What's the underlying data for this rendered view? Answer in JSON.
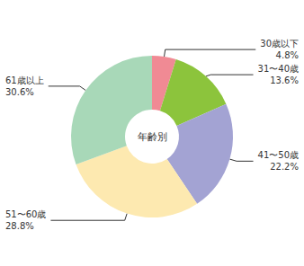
{
  "chart_data": {
    "type": "pie",
    "title": "年齢別",
    "categories": [
      "30歳以下",
      "31〜40歳",
      "41〜50歳",
      "51〜60歳",
      "61歳以上"
    ],
    "values": [
      4.8,
      13.6,
      22.2,
      28.8,
      30.6
    ],
    "value_labels": [
      "4.8%",
      "13.6%",
      "22.2%",
      "28.8%",
      "30.6%"
    ],
    "colors": [
      "#f08a94",
      "#8cc43c",
      "#a3a3d3",
      "#fde9b0",
      "#a8d8b8"
    ],
    "data_labels": true
  }
}
